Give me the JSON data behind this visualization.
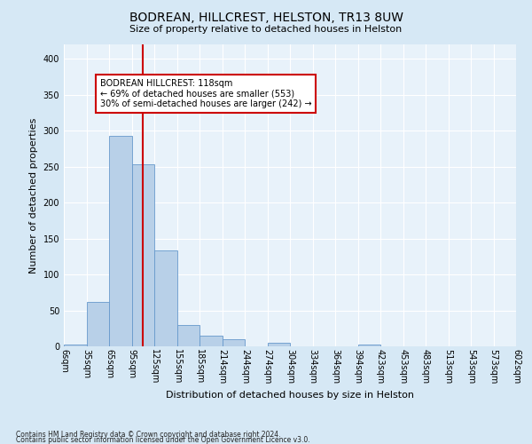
{
  "title": "BODREAN, HILLCREST, HELSTON, TR13 8UW",
  "subtitle": "Size of property relative to detached houses in Helston",
  "xlabel": "Distribution of detached houses by size in Helston",
  "ylabel": "Number of detached properties",
  "bar_values": [
    3,
    62,
    293,
    253,
    133,
    30,
    15,
    10,
    0,
    5,
    0,
    0,
    0,
    3,
    0,
    0,
    0,
    0,
    0,
    0
  ],
  "bin_labels": [
    "6sqm",
    "35sqm",
    "65sqm",
    "95sqm",
    "125sqm",
    "155sqm",
    "185sqm",
    "214sqm",
    "244sqm",
    "274sqm",
    "304sqm",
    "334sqm",
    "364sqm",
    "394sqm",
    "423sqm",
    "453sqm",
    "483sqm",
    "513sqm",
    "543sqm",
    "573sqm",
    "602sqm"
  ],
  "bar_color": "#b8d0e8",
  "bar_edge_color": "#6699cc",
  "vline_bin": 3.5,
  "vline_color": "#cc0000",
  "annotation_line1": "BODREAN HILLCREST: 118sqm",
  "annotation_line2": "← 69% of detached houses are smaller (553)",
  "annotation_line3": "30% of semi-detached houses are larger (242) →",
  "annotation_box_color": "#ffffff",
  "annotation_box_edge": "#cc0000",
  "ylim": [
    0,
    420
  ],
  "yticks": [
    0,
    50,
    100,
    150,
    200,
    250,
    300,
    350,
    400
  ],
  "bg_color": "#d6e8f5",
  "plot_bg_color": "#e8f2fa",
  "footnote1": "Contains HM Land Registry data © Crown copyright and database right 2024.",
  "footnote2": "Contains public sector information licensed under the Open Government Licence v3.0.",
  "grid_color": "#ffffff",
  "title_fontsize": 10,
  "subtitle_fontsize": 8,
  "ylabel_fontsize": 8,
  "xlabel_fontsize": 8,
  "tick_fontsize": 7,
  "annot_fontsize": 7
}
